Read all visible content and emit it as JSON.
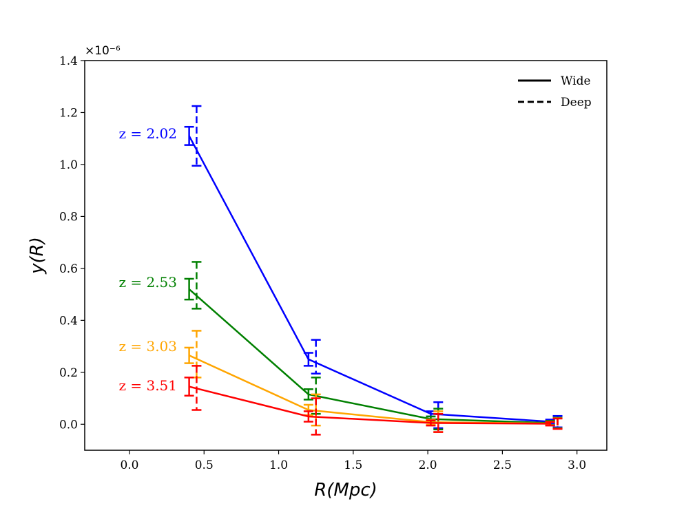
{
  "chart_data": {
    "type": "line",
    "title": "",
    "xlabel": "R(Mpc)",
    "ylabel": "y(R)",
    "xlim": [
      -0.3,
      3.2
    ],
    "ylim": [
      -0.1,
      1.4
    ],
    "y_scale_label": "×10⁻⁶",
    "x_ticks": [
      0.0,
      0.5,
      1.0,
      1.5,
      2.0,
      2.5,
      3.0
    ],
    "x_tick_labels": [
      "0.0",
      "0.5",
      "1.0",
      "1.5",
      "2.0",
      "2.5",
      "3.0"
    ],
    "y_ticks": [
      0.0,
      0.2,
      0.4,
      0.6,
      0.8,
      1.0,
      1.2,
      1.4
    ],
    "y_tick_labels": [
      "0.0",
      "0.2",
      "0.4",
      "0.6",
      "0.8",
      "1.0",
      "1.2",
      "1.4"
    ],
    "legend": {
      "position": "top-right",
      "entries": [
        {
          "label": "Wide",
          "style": "solid"
        },
        {
          "label": "Deep",
          "style": "dashed"
        }
      ]
    },
    "series": [
      {
        "name": "z = 2.02",
        "label_text": "z = 2.02",
        "color": "#0000ff",
        "wide": {
          "x": [
            0.4,
            1.2,
            2.02,
            2.82
          ],
          "y": [
            1.11,
            0.25,
            0.04,
            0.01
          ],
          "err": [
            0.035,
            0.025,
            0.01,
            0.008
          ]
        },
        "deep": {
          "x": [
            0.45,
            1.25,
            2.07,
            2.87
          ],
          "y": [
            1.11,
            0.26,
            0.035,
            0.01
          ],
          "err": [
            0.115,
            0.065,
            0.05,
            0.022
          ]
        }
      },
      {
        "name": "z = 2.53",
        "label_text": "z = 2.53",
        "color": "#008000",
        "wide": {
          "x": [
            0.4,
            1.2,
            2.02,
            2.82
          ],
          "y": [
            0.52,
            0.115,
            0.02,
            0.005
          ],
          "err": [
            0.04,
            0.02,
            0.01,
            0.008
          ]
        },
        "deep": {
          "x": [
            0.45,
            1.25,
            2.07,
            2.87
          ],
          "y": [
            0.535,
            0.11,
            0.02,
            0.005
          ],
          "err": [
            0.09,
            0.07,
            0.04,
            0.02
          ]
        }
      },
      {
        "name": "z = 3.03",
        "label_text": "z = 3.03",
        "color": "#ffa500",
        "wide": {
          "x": [
            0.4,
            1.2,
            2.02,
            2.82
          ],
          "y": [
            0.265,
            0.055,
            0.008,
            0.003
          ],
          "err": [
            0.03,
            0.02,
            0.01,
            0.007
          ]
        },
        "deep": {
          "x": [
            0.45,
            1.25,
            2.07,
            2.87
          ],
          "y": [
            0.27,
            0.055,
            0.01,
            0.003
          ],
          "err": [
            0.09,
            0.06,
            0.04,
            0.02
          ]
        }
      },
      {
        "name": "z = 3.51",
        "label_text": "z = 3.51",
        "color": "#ff0000",
        "wide": {
          "x": [
            0.4,
            1.2,
            2.02,
            2.82
          ],
          "y": [
            0.145,
            0.03,
            0.005,
            0.002
          ],
          "err": [
            0.035,
            0.02,
            0.01,
            0.007
          ]
        },
        "deep": {
          "x": [
            0.45,
            1.25,
            2.07,
            2.87
          ],
          "y": [
            0.14,
            0.03,
            0.005,
            0.002
          ],
          "err": [
            0.085,
            0.07,
            0.035,
            0.02
          ]
        }
      }
    ]
  }
}
